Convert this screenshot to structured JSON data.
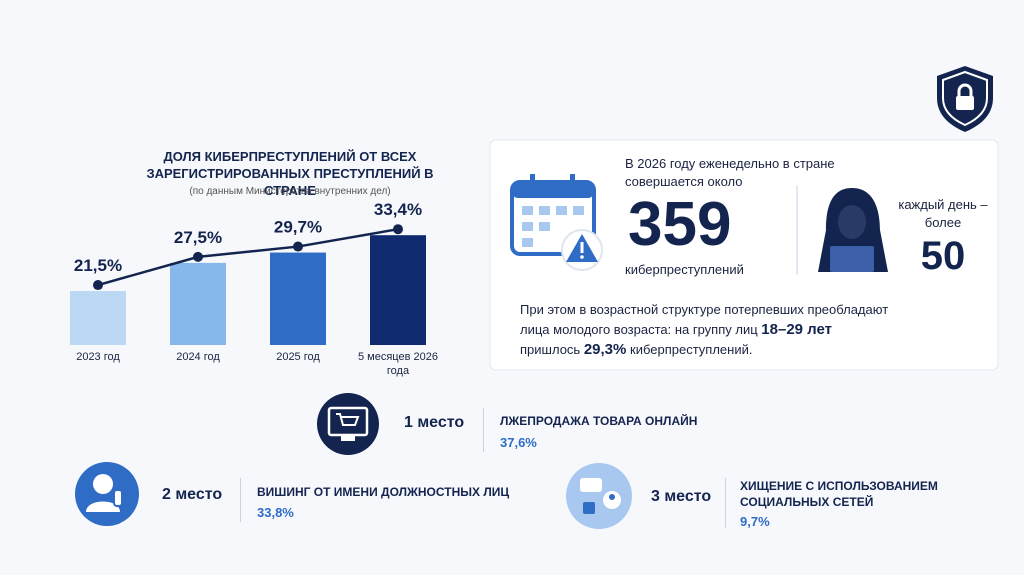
{
  "chart_data": {
    "type": "bar",
    "title": "ДОЛЯ КИБЕРПРЕСТУПЛЕНИЙ ОТ ВСЕХ ЗАРЕГИСТРИРОВАННЫХ ПРЕСТУПЛЕНИЙ В СТРАНЕ",
    "subtitle": "(по данным Министерства внутренних дел)",
    "categories": [
      "2023 год",
      "2024 год",
      "2025 год",
      "5 месяцев 2026 года"
    ],
    "values": [
      21.5,
      27.5,
      29.7,
      33.4
    ],
    "value_labels": [
      "21,5%",
      "27,5%",
      "29,7%",
      "33,4%"
    ],
    "colors": [
      "#bcd8f4",
      "#86b8ec",
      "#2f6cc6",
      "#0f2a6e"
    ],
    "line_color": "#13244f",
    "ylim": [
      10,
      36
    ]
  },
  "weekly": {
    "intro": "В 2026 году еженедельно в стране совершается около",
    "number": "359",
    "unit": "киберпреступлений",
    "daily_prefix": "каждый день – более",
    "daily_number": "50"
  },
  "age": {
    "text_before": "При этом в возрастной структуре потерпевших преобладают лица молодого возраста: на группу лиц",
    "group": "18–29 лет",
    "text_mid": "пришлось",
    "share": "29,3%",
    "text_after": "киберпреступлений."
  },
  "ranking": [
    {
      "place": "1 место",
      "title": "ЛЖЕПРОДАЖА ТОВАРА ОНЛАЙН",
      "share": "37,6%"
    },
    {
      "place": "2 место",
      "title": "ВИШИНГ ОТ ИМЕНИ ДОЛЖНОСТНЫХ ЛИЦ",
      "share": "33,8%"
    },
    {
      "place": "3 место",
      "title": "ХИЩЕНИЕ С ИСПОЛЬЗОВАНИЕМ СОЦИАЛЬНЫХ СЕТЕЙ",
      "share": "9,7%"
    }
  ]
}
